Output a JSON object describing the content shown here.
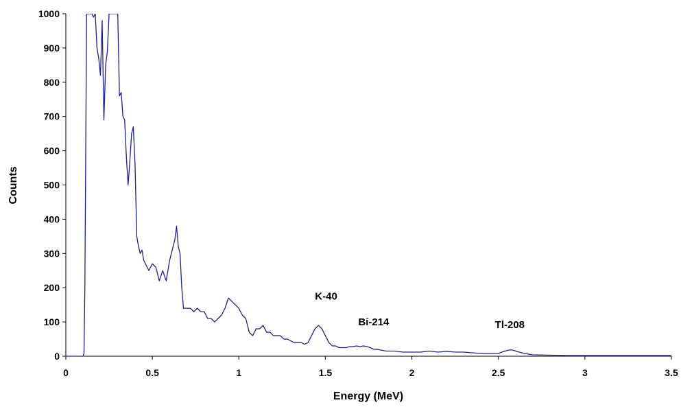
{
  "chart_data": {
    "type": "line",
    "title": "",
    "xlabel": "Energy (MeV)",
    "ylabel": "Counts",
    "xlim": [
      0,
      3.5
    ],
    "ylim": [
      0,
      1000
    ],
    "x_ticks": [
      0,
      0.5,
      1,
      1.5,
      2,
      2.5,
      3,
      3.5
    ],
    "x_tick_labels": [
      "0",
      "0.5",
      "1",
      "1.5",
      "2",
      "2.5",
      "3",
      "3.5"
    ],
    "y_ticks": [
      0,
      100,
      200,
      300,
      400,
      500,
      600,
      700,
      800,
      900,
      1000
    ],
    "y_tick_labels": [
      "0",
      "100",
      "200",
      "300",
      "400",
      "500",
      "600",
      "700",
      "800",
      "900",
      "1000"
    ],
    "grid": false,
    "legend": "none",
    "line_color": "#1f1f8f",
    "annotations": [
      {
        "text": "K-40",
        "x": 1.44,
        "y": 165
      },
      {
        "text": "Bi-214",
        "x": 1.69,
        "y": 90
      },
      {
        "text": "Tl-208",
        "x": 2.48,
        "y": 82
      }
    ],
    "series": [
      {
        "x": [
          0,
          0.1,
          0.105,
          0.11,
          0.115,
          0.12,
          0.13,
          0.14,
          0.15,
          0.16,
          0.17,
          0.18,
          0.19,
          0.2,
          0.21,
          0.22,
          0.23,
          0.24,
          0.25,
          0.26,
          0.27,
          0.28,
          0.29,
          0.3,
          0.31,
          0.32,
          0.33,
          0.34,
          0.35,
          0.36,
          0.37,
          0.38,
          0.39,
          0.4,
          0.41,
          0.42,
          0.43,
          0.44,
          0.45,
          0.46,
          0.47,
          0.48,
          0.5,
          0.52,
          0.54,
          0.56,
          0.58,
          0.6,
          0.61,
          0.62,
          0.63,
          0.64,
          0.65,
          0.66,
          0.67,
          0.68,
          0.7,
          0.72,
          0.74,
          0.76,
          0.78,
          0.8,
          0.82,
          0.84,
          0.86,
          0.88,
          0.9,
          0.92,
          0.94,
          0.96,
          0.98,
          1.0,
          1.02,
          1.04,
          1.06,
          1.08,
          1.1,
          1.12,
          1.14,
          1.16,
          1.18,
          1.2,
          1.22,
          1.24,
          1.26,
          1.28,
          1.3,
          1.32,
          1.34,
          1.36,
          1.38,
          1.4,
          1.42,
          1.44,
          1.46,
          1.48,
          1.5,
          1.52,
          1.54,
          1.56,
          1.58,
          1.6,
          1.62,
          1.64,
          1.66,
          1.68,
          1.7,
          1.72,
          1.74,
          1.76,
          1.78,
          1.8,
          1.85,
          1.9,
          1.95,
          2.0,
          2.05,
          2.1,
          2.15,
          2.2,
          2.25,
          2.3,
          2.35,
          2.4,
          2.45,
          2.5,
          2.52,
          2.54,
          2.56,
          2.58,
          2.6,
          2.62,
          2.65,
          2.7,
          2.8,
          2.9,
          3.0,
          3.1,
          3.2,
          3.3,
          3.4,
          3.5
        ],
        "values": [
          0,
          0,
          10,
          200,
          600,
          1000,
          1000,
          1000,
          1000,
          990,
          1000,
          900,
          870,
          820,
          980,
          690,
          850,
          890,
          1000,
          1000,
          1000,
          1000,
          1000,
          1000,
          760,
          770,
          700,
          690,
          580,
          500,
          570,
          650,
          670,
          560,
          350,
          320,
          300,
          310,
          280,
          270,
          260,
          250,
          270,
          260,
          220,
          250,
          220,
          280,
          300,
          320,
          340,
          380,
          320,
          300,
          200,
          140,
          140,
          140,
          130,
          140,
          130,
          130,
          110,
          110,
          100,
          110,
          120,
          140,
          170,
          160,
          150,
          140,
          120,
          110,
          70,
          60,
          80,
          80,
          90,
          70,
          70,
          60,
          60,
          60,
          50,
          50,
          45,
          40,
          40,
          40,
          35,
          40,
          60,
          80,
          90,
          80,
          60,
          40,
          30,
          30,
          25,
          25,
          25,
          28,
          28,
          30,
          28,
          30,
          28,
          25,
          20,
          20,
          15,
          15,
          12,
          12,
          12,
          15,
          12,
          14,
          12,
          12,
          10,
          8,
          8,
          8,
          12,
          15,
          18,
          18,
          15,
          12,
          8,
          4,
          3,
          2,
          2,
          2,
          2,
          2,
          2,
          2
        ]
      }
    ]
  }
}
